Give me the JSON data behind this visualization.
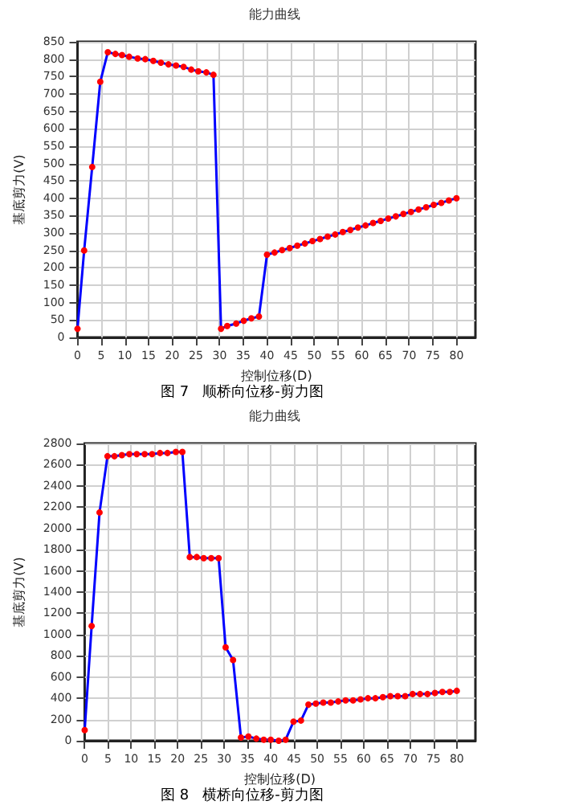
{
  "chart_data": [
    {
      "type": "line",
      "title": "能力曲线",
      "xlabel": "控制位移(D)",
      "ylabel": "基底剪力(V)",
      "annotations": [
        "图 7   顺桥向位移-剪力图"
      ],
      "xlim": [
        0,
        84
      ],
      "xticks": [
        0,
        5,
        10,
        15,
        20,
        25,
        30,
        35,
        40,
        45,
        50,
        55,
        60,
        65,
        70,
        75,
        80
      ],
      "ylim": [
        0,
        850
      ],
      "yticks": [
        0,
        50,
        100,
        150,
        200,
        250,
        300,
        350,
        400,
        450,
        500,
        550,
        600,
        650,
        700,
        750,
        800,
        850
      ],
      "grid": true,
      "marker": "circle",
      "line_style": "solid",
      "series": [
        {
          "color": "#0000ff",
          "x": [
            0,
            1.4,
            3.1,
            4.8,
            6.4,
            8,
            9.4,
            10.9,
            12.7,
            14.3,
            16,
            17.6,
            19.2,
            20.8,
            22.4,
            24,
            25.5,
            27.2,
            28.7,
            30.3,
            31.6,
            33.5,
            35.1,
            36.7,
            38.3,
            40,
            41.6,
            43.2,
            44.8,
            46.4,
            48,
            49.6,
            51.2,
            52.8,
            54.4,
            56,
            57.6,
            59.2,
            60.8,
            62.4,
            64,
            65.6,
            67.2,
            68.8,
            70.4,
            72,
            73.6,
            75.2,
            76.8,
            78.4,
            80
          ],
          "values": [
            25,
            250,
            490,
            735,
            820,
            815,
            812,
            807,
            802,
            800,
            795,
            790,
            785,
            782,
            778,
            770,
            765,
            762,
            755,
            25,
            33,
            40,
            48,
            55,
            60,
            238,
            244,
            251,
            257,
            264,
            270,
            277,
            283,
            290,
            296,
            303,
            309,
            316,
            322,
            329,
            335,
            342,
            348,
            355,
            361,
            368,
            374,
            381,
            387,
            394,
            400
          ]
        }
      ]
    },
    {
      "type": "line",
      "title": "能力曲线",
      "xlabel": "控制位移(D)",
      "ylabel": "基底剪力(V)",
      "annotations": [
        "图 8   横桥向位移-剪力图"
      ],
      "xlim": [
        0,
        84
      ],
      "xticks": [
        0,
        5,
        10,
        15,
        20,
        25,
        30,
        35,
        40,
        45,
        50,
        55,
        60,
        65,
        70,
        75,
        80
      ],
      "ylim": [
        0,
        2800
      ],
      "yticks": [
        0,
        200,
        400,
        600,
        800,
        1000,
        1200,
        1400,
        1600,
        1800,
        2000,
        2200,
        2400,
        2600,
        2800
      ],
      "grid": true,
      "marker": "circle",
      "line_style": "solid",
      "series": [
        {
          "color": "#0000ff",
          "x": [
            0,
            1.5,
            3.2,
            4.9,
            6.4,
            8,
            9.6,
            11.2,
            12.9,
            14.5,
            16.2,
            17.8,
            19.6,
            21,
            22.6,
            24.1,
            25.6,
            27.2,
            28.8,
            30.3,
            31.9,
            33.6,
            35.2,
            36.9,
            38.5,
            40,
            41.7,
            43.2,
            44.9,
            46.5,
            48.1,
            49.7,
            51.3,
            52.9,
            54.5,
            56.1,
            57.7,
            59.3,
            60.9,
            62.5,
            64.1,
            65.7,
            67.3,
            68.9,
            70.5,
            72.1,
            73.7,
            75.3,
            76.9,
            78.5,
            80
          ],
          "values": [
            100,
            1080,
            2150,
            2680,
            2680,
            2690,
            2700,
            2700,
            2700,
            2700,
            2710,
            2710,
            2720,
            2720,
            1730,
            1730,
            1720,
            1720,
            1720,
            880,
            760,
            30,
            40,
            20,
            10,
            10,
            0,
            10,
            180,
            190,
            340,
            350,
            360,
            360,
            370,
            380,
            380,
            390,
            400,
            400,
            410,
            420,
            420,
            420,
            440,
            440,
            440,
            450,
            460,
            460,
            470
          ]
        }
      ]
    }
  ]
}
